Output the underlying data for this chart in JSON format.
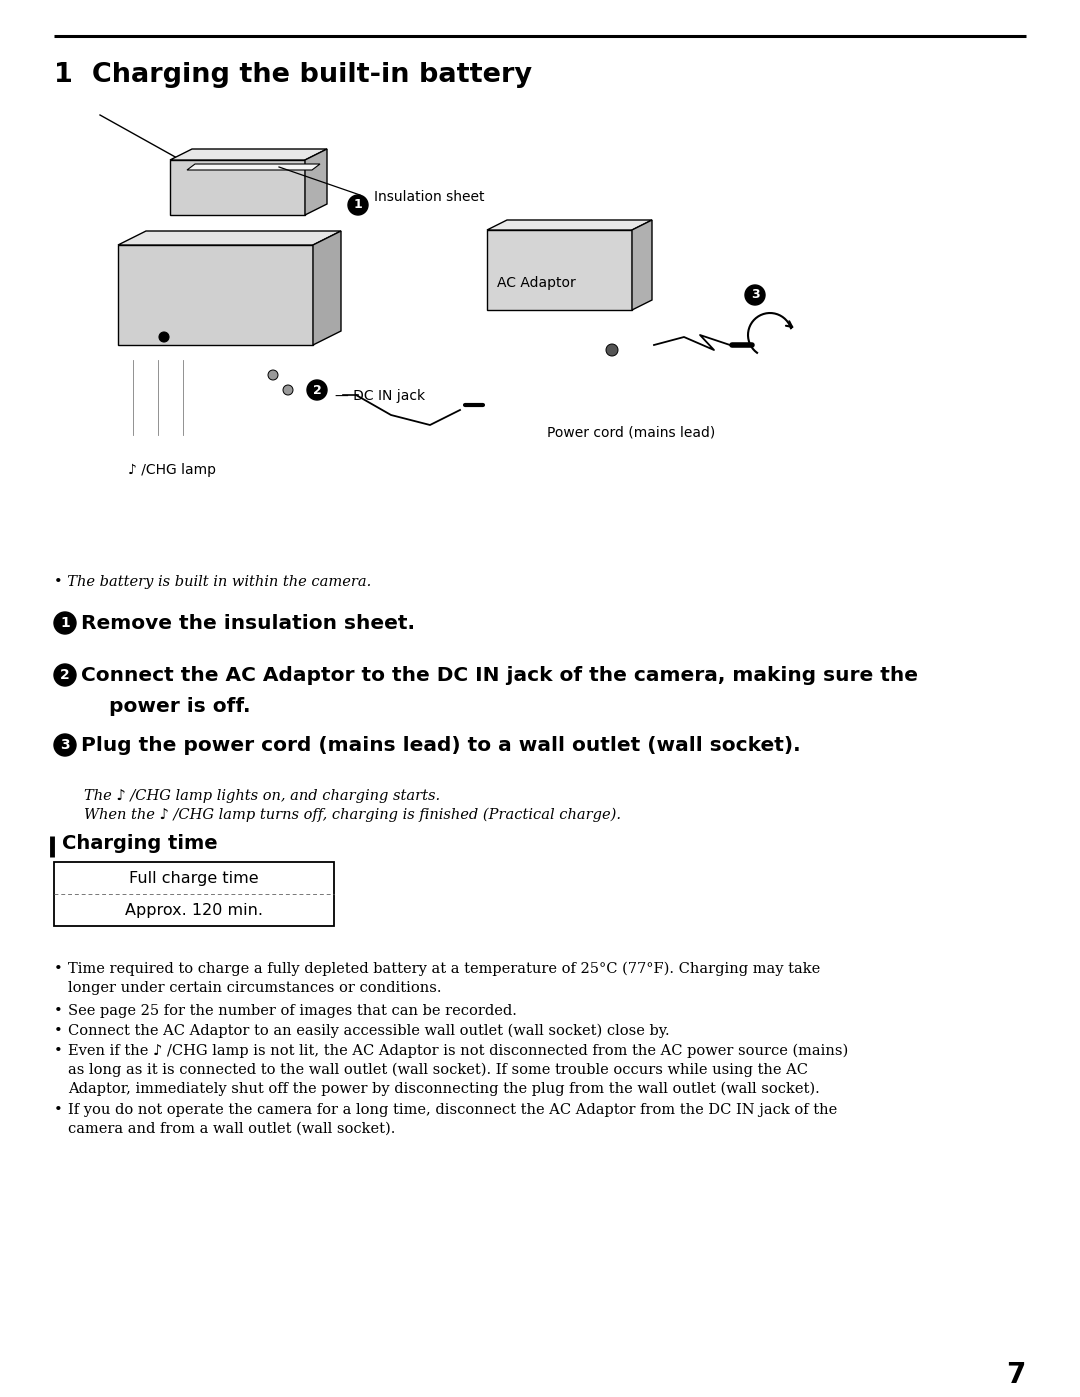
{
  "title": "1  Charging the built-in battery",
  "bg_color": "#ffffff",
  "text_color": "#000000",
  "page_number": "7",
  "step1_label": "Remove the insulation sheet.",
  "step2_line1": "Connect the AC Adaptor to the DC IN jack of the camera, making sure the",
  "step2_line2": "    power is off.",
  "step3_label": "Plug the power cord (mains lead) to a wall outlet (wall socket).",
  "step3_sub1": "The ♪ /CHG lamp lights on, and charging starts.",
  "step3_sub2": "When the ♪ /CHG lamp turns off, charging is finished (Practical charge).",
  "battery_note": "The battery is built in within the camera.",
  "charging_time_header": "Charging time",
  "table_col1": "Full charge time",
  "table_val1": "Approx. 120 min.",
  "bullet1a": "Time required to charge a fully depleted battery at a temperature of 25°C (77°F). Charging may take",
  "bullet1b": "longer under certain circumstances or conditions.",
  "bullet2": "See page 25 for the number of images that can be recorded.",
  "bullet3": "Connect the AC Adaptor to an easily accessible wall outlet (wall socket) close by.",
  "bullet4a": "Even if the ♪ /CHG lamp is not lit, the AC Adaptor is not disconnected from the AC power source (mains)",
  "bullet4b": "as long as it is connected to the wall outlet (wall socket). If some trouble occurs while using the AC",
  "bullet4c": "Adaptor, immediately shut off the power by disconnecting the plug from the wall outlet (wall socket).",
  "bullet5a": "If you do not operate the camera for a long time, disconnect the AC Adaptor from the DC IN jack of the",
  "bullet5b": "camera and from a wall outlet (wall socket).",
  "diag_label_insulation": "Insulation sheet",
  "diag_label_chg": "♪ /CHG lamp",
  "diag_label_ac": "AC Adaptor",
  "diag_label_dcin": "DC IN jack",
  "diag_label_power": "Power cord (mains lead)"
}
